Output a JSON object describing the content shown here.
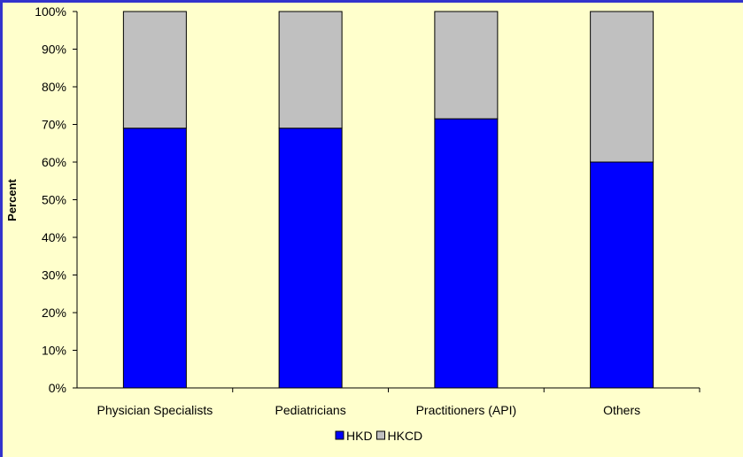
{
  "colors": {
    "background": "#FFFFCC",
    "frame": "#3333CC",
    "hkd": "#0000FF",
    "hkcd": "#C0C0C0"
  },
  "chart_data": {
    "type": "bar",
    "stacked": true,
    "percent": true,
    "categories": [
      "Physician Specialists",
      "Pediatricians",
      "Practitioners (API)",
      "Others"
    ],
    "series": [
      {
        "name": "HKD",
        "color": "#0000FF",
        "values": [
          69,
          69,
          71.5,
          60
        ]
      },
      {
        "name": "HKCD",
        "color": "#C0C0C0",
        "values": [
          31,
          31,
          28.5,
          40
        ]
      }
    ],
    "ylabel": "Percent",
    "xlabel": "",
    "title": "",
    "ylim": [
      0,
      100
    ],
    "yticks": [
      "0%",
      "10%",
      "20%",
      "30%",
      "40%",
      "50%",
      "60%",
      "70%",
      "80%",
      "90%",
      "100%"
    ],
    "grid": false,
    "legend": "bottom-center"
  }
}
